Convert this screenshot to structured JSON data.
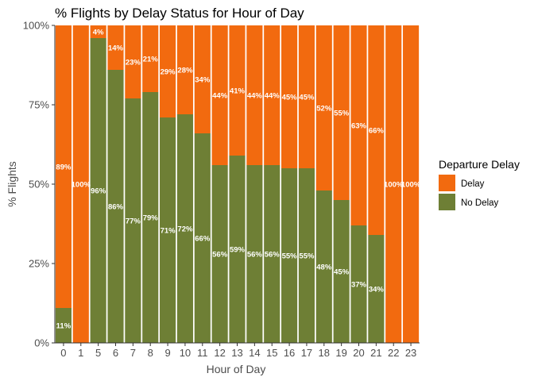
{
  "chart_data": {
    "type": "bar",
    "stacked": true,
    "title": "% Flights by Delay Status for Hour of Day",
    "xlabel": "Hour of Day",
    "ylabel": "% Flights",
    "ylim": [
      0,
      1
    ],
    "y_ticks": [
      "0%",
      "25%",
      "50%",
      "75%",
      "100%"
    ],
    "y_tick_values": [
      0,
      0.25,
      0.5,
      0.75,
      1
    ],
    "categories": [
      "0",
      "1",
      "5",
      "6",
      "7",
      "8",
      "9",
      "10",
      "11",
      "12",
      "13",
      "14",
      "15",
      "16",
      "17",
      "18",
      "19",
      "20",
      "21",
      "22",
      "23"
    ],
    "legend": {
      "title": "Departure Delay",
      "position": "right"
    },
    "series": [
      {
        "name": "Delay",
        "color": "#F26A0F",
        "values": [
          0.89,
          1.0,
          0.04,
          0.14,
          0.23,
          0.21,
          0.29,
          0.28,
          0.34,
          0.44,
          0.41,
          0.44,
          0.44,
          0.45,
          0.45,
          0.52,
          0.55,
          0.63,
          0.66,
          1.0,
          1.0
        ],
        "labels": [
          "89%",
          "100%",
          "4%",
          "14%",
          "23%",
          "21%",
          "29%",
          "28%",
          "34%",
          "44%",
          "41%",
          "44%",
          "44%",
          "45%",
          "45%",
          "52%",
          "55%",
          "63%",
          "66%",
          "100%",
          "100%"
        ]
      },
      {
        "name": "No Delay",
        "color": "#6E7F35",
        "values": [
          0.11,
          0,
          0.96,
          0.86,
          0.77,
          0.79,
          0.71,
          0.72,
          0.66,
          0.56,
          0.59,
          0.56,
          0.56,
          0.55,
          0.55,
          0.48,
          0.45,
          0.37,
          0.34,
          0,
          0
        ],
        "labels": [
          "11%",
          "",
          "96%",
          "86%",
          "77%",
          "79%",
          "71%",
          "72%",
          "66%",
          "56%",
          "59%",
          "56%",
          "56%",
          "55%",
          "55%",
          "48%",
          "45%",
          "37%",
          "34%",
          "",
          ""
        ]
      }
    ]
  }
}
